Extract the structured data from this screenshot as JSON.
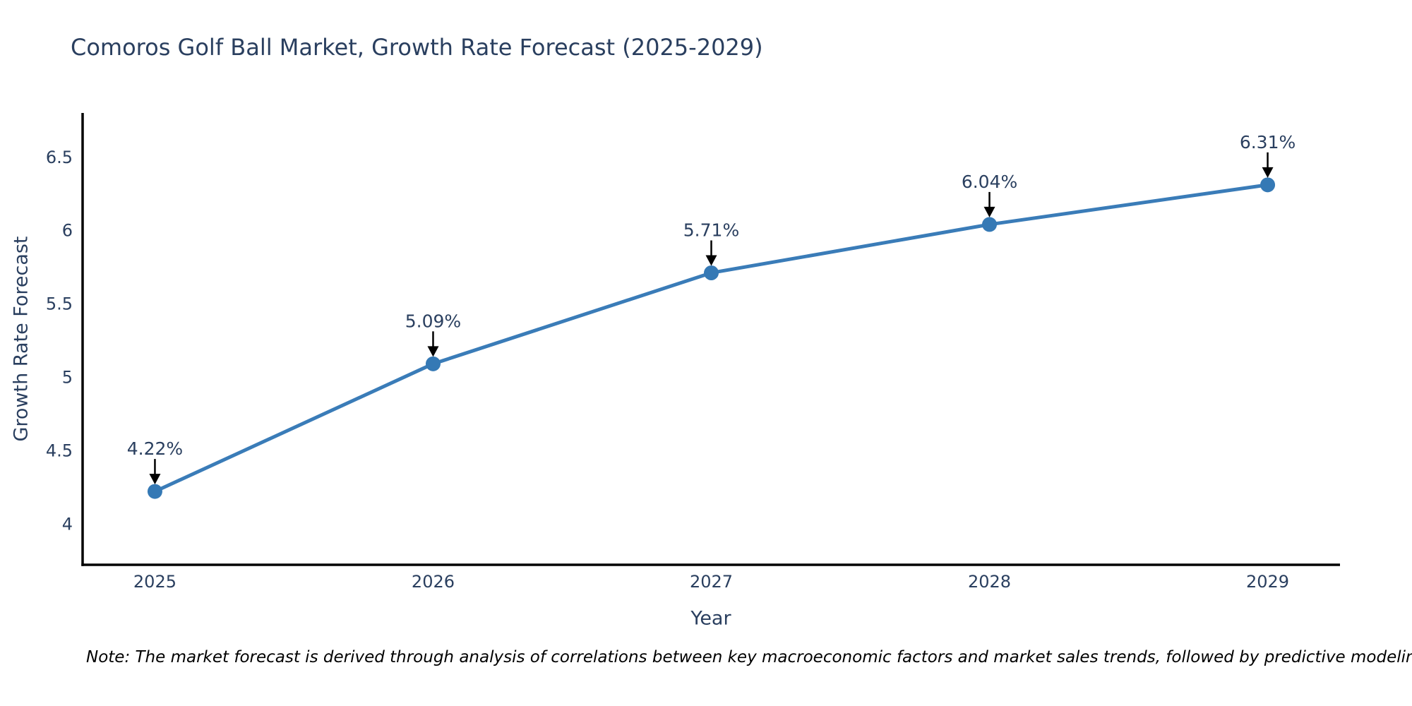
{
  "title": "Comoros Golf Ball Market, Growth Rate Forecast (2025-2029)",
  "note": "Note: The market forecast is derived through analysis of correlations between key macroeconomic factors and market sales trends, followed by predictive modeling to project future sales",
  "chart_data": {
    "type": "line",
    "title": "Comoros Golf Ball Market, Growth Rate Forecast (2025-2029)",
    "xlabel": "Year",
    "ylabel": "Growth Rate Forecast",
    "x": [
      2025,
      2026,
      2027,
      2028,
      2029
    ],
    "values": [
      4.22,
      5.09,
      5.71,
      6.04,
      6.31
    ],
    "point_labels": [
      "4.22%",
      "5.09%",
      "5.71%",
      "6.04%",
      "6.31%"
    ],
    "xticks": {
      "values": [
        2025,
        2026,
        2027,
        2028,
        2029
      ],
      "labels": [
        "2025",
        "2026",
        "2027",
        "2028",
        "2029"
      ]
    },
    "yticks": {
      "values": [
        4,
        4.5,
        5,
        5.5,
        6,
        6.5
      ],
      "labels": [
        "4",
        "4.5",
        "5",
        "5.5",
        "6",
        "6.5"
      ]
    },
    "xlim": [
      2024.74,
      2029.26
    ],
    "ylim": [
      3.72,
      6.8
    ],
    "grid": false,
    "legend": "none",
    "annotation_style": "value label above point with downward black arrow",
    "colors": {
      "line": "#3a7cb8",
      "marker": "#3579b5",
      "text": "#2a3f5f",
      "axis": "#000000",
      "arrow": "#000000",
      "background": "#ffffff"
    }
  }
}
